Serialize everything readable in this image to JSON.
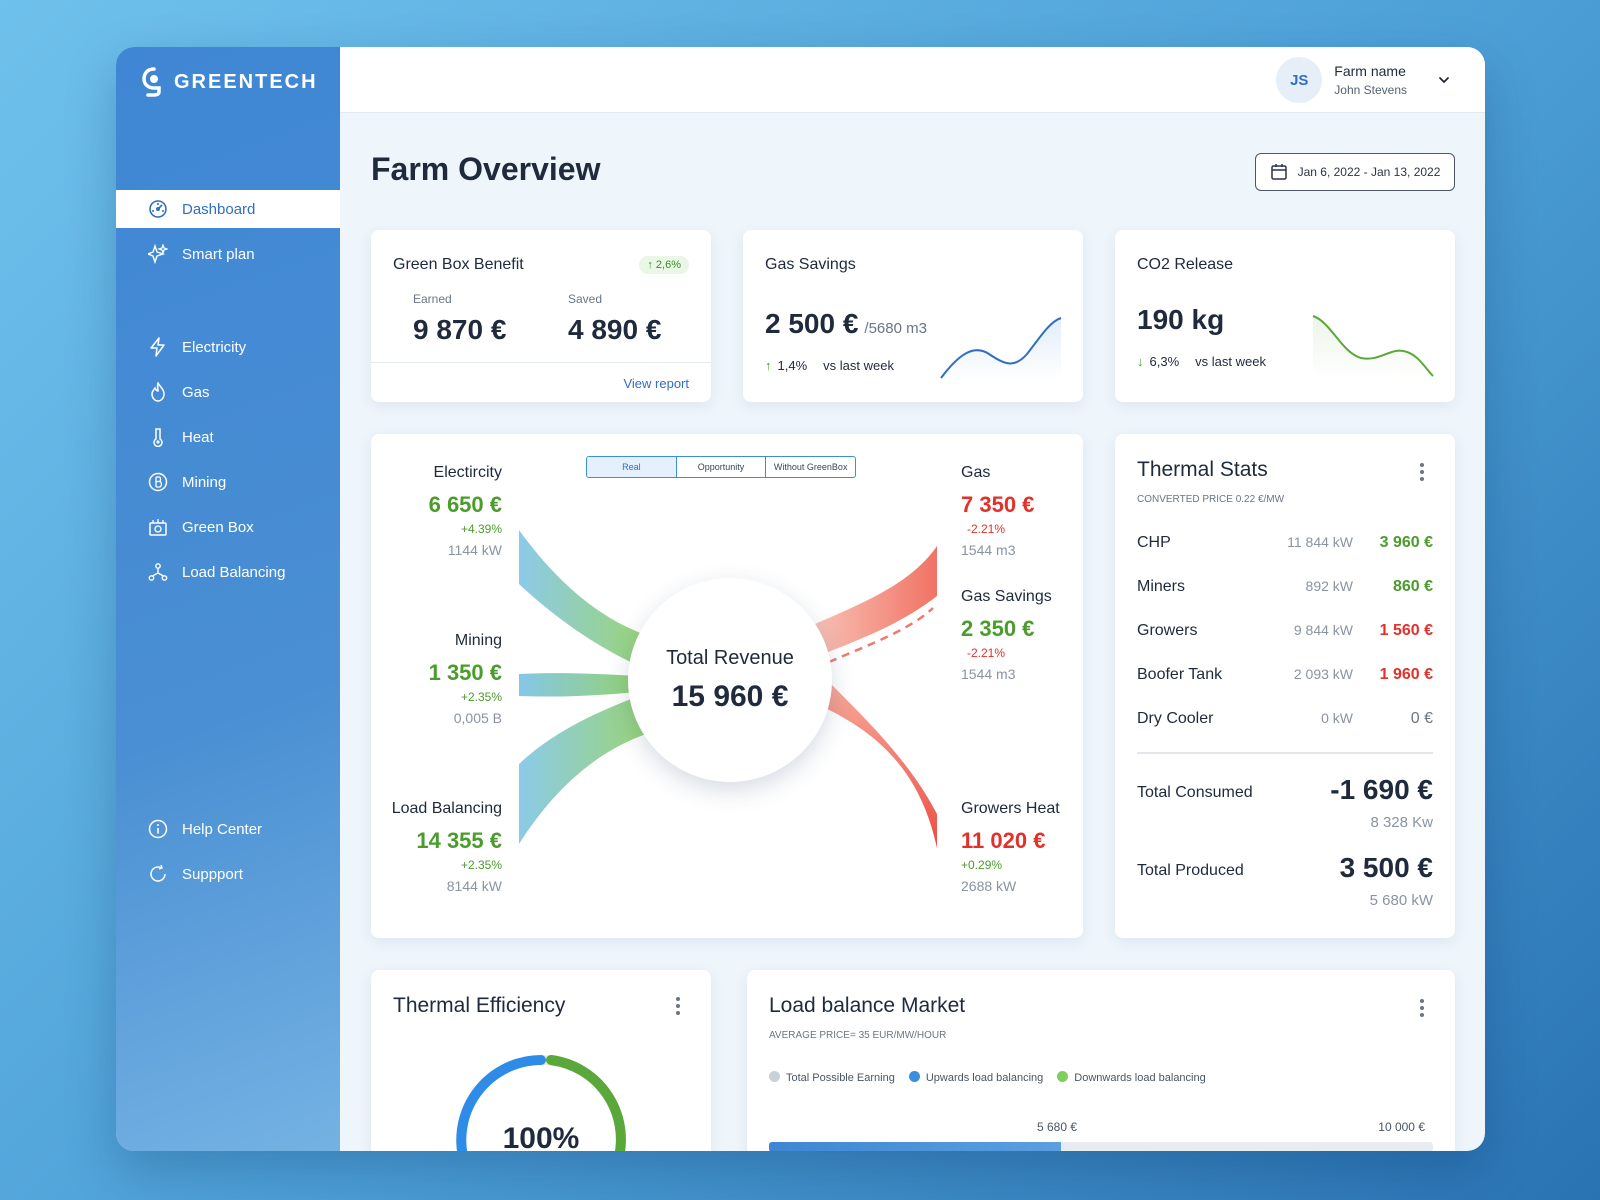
{
  "app": {
    "brand": "GREENTECH"
  },
  "sidebar": {
    "items": [
      {
        "label": "Dashboard",
        "icon": "dashboard-icon",
        "active": true
      },
      {
        "label": "Smart plan",
        "icon": "sparkle-icon"
      },
      {
        "label": "Electricity",
        "icon": "bolt-icon"
      },
      {
        "label": "Gas",
        "icon": "flame-icon"
      },
      {
        "label": "Heat",
        "icon": "thermometer-icon"
      },
      {
        "label": "Mining",
        "icon": "bitcoin-icon"
      },
      {
        "label": "Green Box",
        "icon": "greenbox-icon"
      },
      {
        "label": "Load Balancing",
        "icon": "network-icon"
      }
    ],
    "footer": [
      {
        "label": "Help Center",
        "icon": "info-icon"
      },
      {
        "label": "Suppport",
        "icon": "support-icon"
      }
    ]
  },
  "user": {
    "initials": "JS",
    "farm": "Farm name",
    "name": "John Stevens"
  },
  "page": {
    "title": "Farm Overview",
    "date_range": "Jan 6, 2022 - Jan 13, 2022"
  },
  "green_box": {
    "title": "Green Box Benefit",
    "badge": "2,6%",
    "earned_label": "Earned",
    "earned": "9 870 €",
    "saved_label": "Saved",
    "saved": "4 890 €",
    "link": "View report"
  },
  "gas_savings": {
    "title": "Gas Savings",
    "value": "2 500 €",
    "unit": "/5680 m3",
    "change": "1,4%",
    "compare": "vs last week"
  },
  "co2": {
    "title": "CO2 Release",
    "value": "190 kg",
    "change": "6,3%",
    "compare": "vs last week"
  },
  "revenue": {
    "tabs": [
      "Real",
      "Opportunity",
      "Without GreenBox"
    ],
    "total_label": "Total Revenue",
    "total": "15 960 €",
    "left": [
      {
        "label": "Electircity",
        "value": "6 650 €",
        "pct": "+4.39%",
        "kw": "1144 kW"
      },
      {
        "label": "Mining",
        "value": "1 350 €",
        "pct": "+2.35%",
        "kw": "0,005 B"
      },
      {
        "label": "Load Balancing",
        "value": "14 355 €",
        "pct": "+2.35%",
        "kw": "8144 kW"
      }
    ],
    "right": [
      {
        "label": "Gas",
        "value": "7 350 €",
        "pct": "-2.21%",
        "kw": "1544 m3"
      },
      {
        "label": "Gas Savings",
        "value": "2 350 €",
        "pct": "-2.21%",
        "kw": "1544 m3"
      },
      {
        "label": "Growers Heat",
        "value": "11 020 €",
        "pct": "+0.29%",
        "kw": "2688 kW"
      }
    ]
  },
  "thermal_stats": {
    "title": "Thermal Stats",
    "subtitle": "CONVERTED PRICE 0.22 €/MW",
    "rows": [
      {
        "name": "CHP",
        "kw": "11 844 kW",
        "value": "3 960 €",
        "color": "green"
      },
      {
        "name": "Miners",
        "kw": "892 kW",
        "value": "860 €",
        "color": "green"
      },
      {
        "name": "Growers",
        "kw": "9 844 kW",
        "value": "1 560 €",
        "color": "red"
      },
      {
        "name": "Boofer Tank",
        "kw": "2 093 kW",
        "value": "1 960 €",
        "color": "red"
      },
      {
        "name": "Dry Cooler",
        "kw": "0 kW",
        "value": "0 €",
        "color": "muted"
      }
    ],
    "consumed_label": "Total Consumed",
    "consumed": "-1 690 €",
    "consumed_kw": "8 328 Kw",
    "produced_label": "Total Produced",
    "produced": "3 500 €",
    "produced_kw": "5 680 kW"
  },
  "thermal_eff": {
    "title": "Thermal Efficiency",
    "value": "100%"
  },
  "load_market": {
    "title": "Load balance Market",
    "subtitle": "AVERAGE PRICE= 35 EUR/MW/HOUR",
    "legend": [
      "Total Possible Earning",
      "Upwards load balancing",
      "Downwards load balancing"
    ],
    "mark1": "5 680 €",
    "mark2": "10 000 €",
    "progress": 0.44
  },
  "colors": {
    "primary": "#2f6fc2",
    "green": "#4b9b2d",
    "red": "#e2302a"
  }
}
